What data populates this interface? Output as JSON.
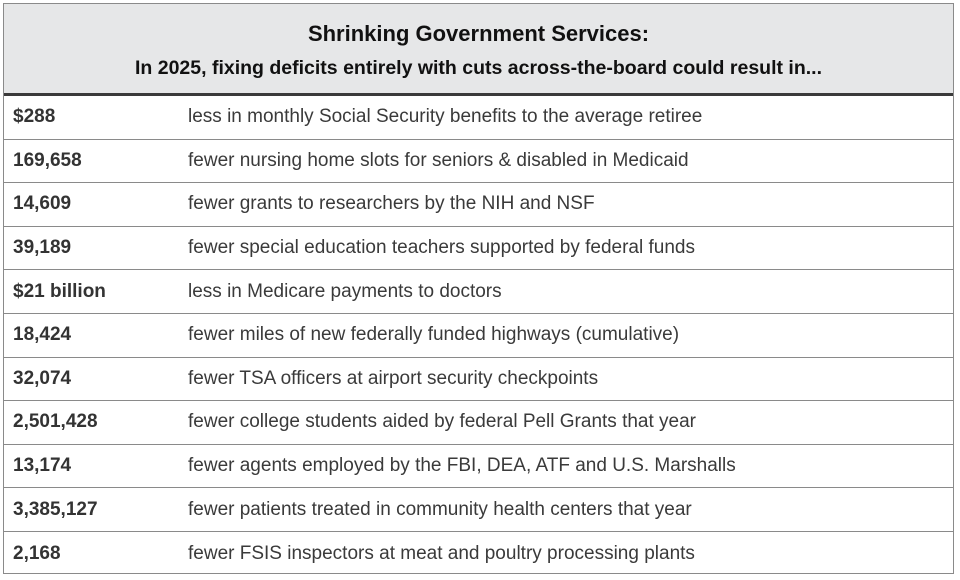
{
  "title": "Shrinking Government Services:",
  "subtitle": "In 2025, fixing deficits entirely with cuts across-the-board could result in...",
  "rows": [
    {
      "value": "$288",
      "description": "less in monthly Social Security benefits to the average retiree"
    },
    {
      "value": "169,658",
      "description": "fewer nursing home slots for seniors & disabled in Medicaid"
    },
    {
      "value": "14,609",
      "description": "fewer grants to researchers by the NIH and NSF"
    },
    {
      "value": "39,189",
      "description": "fewer special education teachers supported by federal funds"
    },
    {
      "value": "$21 billion",
      "description": "less in Medicare payments to doctors"
    },
    {
      "value": "18,424",
      "description": "fewer miles of new federally funded highways (cumulative)"
    },
    {
      "value": "32,074",
      "description": "fewer TSA officers at airport security checkpoints"
    },
    {
      "value": "2,501,428",
      "description": "fewer college students aided by federal Pell Grants that year"
    },
    {
      "value": "13,174",
      "description": "fewer agents employed by the FBI, DEA, ATF and U.S. Marshalls"
    },
    {
      "value": "3,385,127",
      "description": "fewer patients treated in community health centers that year"
    },
    {
      "value": "2,168",
      "description": "fewer FSIS inspectors at meat and poultry processing plants"
    }
  ]
}
